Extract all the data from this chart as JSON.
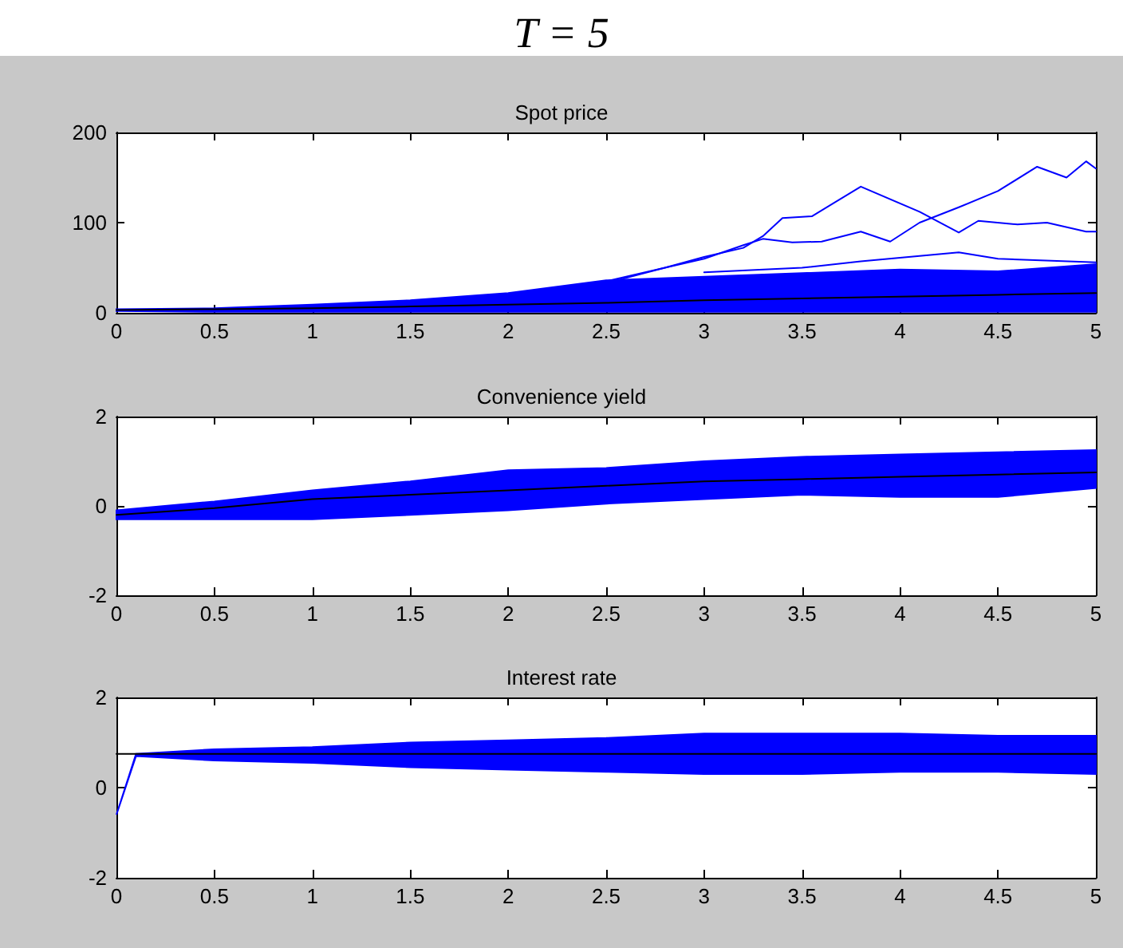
{
  "chart_data": [
    {
      "type": "line",
      "title": "T = 5",
      "subtitle": "Spot price",
      "color": "#0000ff",
      "xlim": [
        0,
        5
      ],
      "xticks": [
        0,
        0.5,
        1,
        1.5,
        2,
        2.5,
        3,
        3.5,
        4,
        4.5,
        5
      ],
      "ylim": [
        0,
        200
      ],
      "yticks": [
        0,
        100,
        200
      ],
      "grid": false,
      "series": [
        {
          "color": "#000000",
          "x": [
            0,
            0.5,
            1,
            1.5,
            2,
            2.5,
            3,
            3.5,
            4,
            4.5,
            5
          ],
          "values": [
            3,
            4,
            5,
            7,
            9,
            11,
            14,
            16,
            18,
            20,
            22
          ],
          "lower": [
            2,
            1,
            1,
            1,
            1,
            1,
            1,
            1,
            1,
            1,
            1
          ],
          "upper": [
            4,
            5,
            9,
            14,
            22,
            36,
            40,
            44,
            48,
            46,
            54
          ]
        },
        {
          "x": [
            2.5,
            2.8,
            3,
            3.2,
            3.3,
            3.4,
            3.55,
            3.8,
            4.1,
            4.3,
            4.4,
            4.6,
            4.75,
            4.95,
            5
          ],
          "values": [
            35,
            50,
            62,
            72,
            85,
            105,
            107,
            140,
            112,
            89,
            102,
            98,
            100,
            90,
            90
          ]
        },
        {
          "x": [
            2.5,
            2.8,
            3,
            3.2,
            3.3,
            3.45,
            3.6,
            3.8,
            3.95,
            4.1,
            4.3,
            4.5,
            4.7,
            4.85,
            4.95,
            5
          ],
          "values": [
            33,
            50,
            60,
            75,
            82,
            78,
            79,
            90,
            79,
            100,
            117,
            135,
            162,
            150,
            168,
            160
          ]
        },
        {
          "x": [
            3,
            3.5,
            3.8,
            4.1,
            4.3,
            4.5,
            5
          ],
          "values": [
            45,
            50,
            57,
            63,
            67,
            60,
            56
          ]
        }
      ]
    },
    {
      "type": "line",
      "title": "Convenience yield",
      "color": "#0000ff",
      "xlim": [
        0,
        5
      ],
      "xticks": [
        0,
        0.5,
        1,
        1.5,
        2,
        2.5,
        3,
        3.5,
        4,
        4.5,
        5
      ],
      "ylim": [
        -2,
        2
      ],
      "yticks": [
        -2,
        0,
        2
      ],
      "grid": false,
      "series": [
        {
          "color": "#000000",
          "x": [
            0,
            0.5,
            1,
            1.5,
            2,
            2.5,
            3,
            3.5,
            4,
            4.5,
            5
          ],
          "values": [
            -0.2,
            -0.05,
            0.15,
            0.25,
            0.35,
            0.45,
            0.55,
            0.6,
            0.65,
            0.7,
            0.75
          ],
          "lower": [
            -0.3,
            -0.3,
            -0.3,
            -0.2,
            -0.1,
            0.05,
            0.15,
            0.25,
            0.2,
            0.2,
            0.4
          ],
          "upper": [
            -0.1,
            0.1,
            0.35,
            0.55,
            0.8,
            0.85,
            1.0,
            1.1,
            1.15,
            1.2,
            1.25
          ]
        }
      ]
    },
    {
      "type": "line",
      "title": "Interest rate",
      "color": "#0000ff",
      "xlim": [
        0,
        5
      ],
      "xticks": [
        0,
        0.5,
        1,
        1.5,
        2,
        2.5,
        3,
        3.5,
        4,
        4.5,
        5
      ],
      "ylim": [
        -2,
        2
      ],
      "yticks": [
        -2,
        0,
        2
      ],
      "grid": false,
      "series": [
        {
          "color": "#000000",
          "x": [
            0,
            0.1,
            0.5,
            1,
            1.5,
            2,
            2.5,
            3,
            3.5,
            4,
            4.5,
            5
          ],
          "values": [
            0.75,
            0.75,
            0.75,
            0.75,
            0.75,
            0.75,
            0.75,
            0.75,
            0.75,
            0.75,
            0.75,
            0.75
          ],
          "lower": [
            -0.6,
            0.7,
            0.6,
            0.55,
            0.45,
            0.4,
            0.35,
            0.3,
            0.3,
            0.35,
            0.35,
            0.3
          ],
          "upper": [
            -0.6,
            0.75,
            0.85,
            0.9,
            1.0,
            1.05,
            1.1,
            1.2,
            1.2,
            1.2,
            1.15,
            1.15
          ]
        }
      ]
    }
  ]
}
